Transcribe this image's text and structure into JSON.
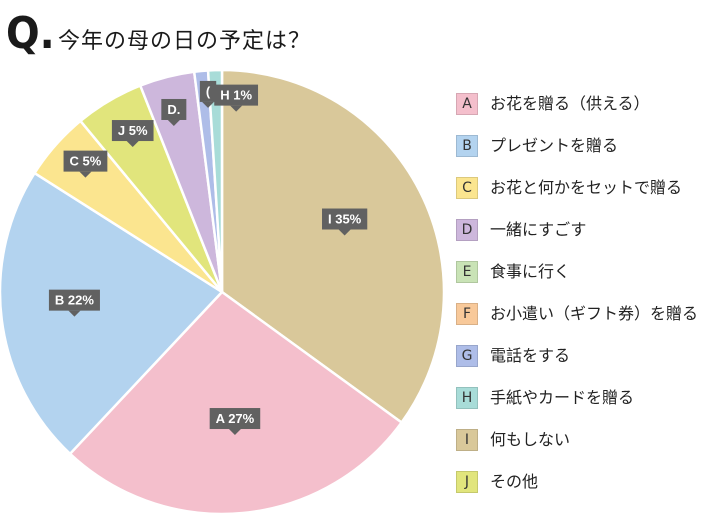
{
  "title": {
    "mark": "Q.",
    "text": "今年の母の日の予定は？"
  },
  "chart_data": {
    "type": "pie",
    "title": "今年の母の日の予定は？",
    "start": "top, clockwise",
    "slices": [
      {
        "key": "I",
        "label": "何もしない",
        "value": 35,
        "color": "#d9c89a"
      },
      {
        "key": "A",
        "label": "お花を贈る（供える）",
        "value": 27,
        "color": "#f4bfcc"
      },
      {
        "key": "B",
        "label": "プレゼントを贈る",
        "value": 22,
        "color": "#b3d3ef"
      },
      {
        "key": "C",
        "label": "お花と何かをセットで贈る",
        "value": 5,
        "color": "#fbe58f"
      },
      {
        "key": "J",
        "label": "その他",
        "value": 5,
        "color": "#e1e57c"
      },
      {
        "key": "D",
        "label": "一緒にすごす",
        "value": 4,
        "color": "#cdb7dc"
      },
      {
        "key": "G",
        "label": "電話をする",
        "value": 1,
        "color": "#aebde8"
      },
      {
        "key": "H",
        "label": "手紙やカードを贈る",
        "value": 1,
        "color": "#a8dcd8"
      }
    ],
    "data_labels": [
      {
        "key": "I",
        "text": "I 35%"
      },
      {
        "key": "A",
        "text": "A 27%"
      },
      {
        "key": "B",
        "text": "B 22%"
      },
      {
        "key": "C",
        "text": "C 5%"
      },
      {
        "key": "J",
        "text": "J 5%"
      },
      {
        "key": "D",
        "text": "D."
      },
      {
        "key": "G",
        "text": "("
      },
      {
        "key": "H",
        "text": "H 1%"
      }
    ],
    "legend": [
      {
        "key": "A",
        "label": "お花を贈る（供える）",
        "color": "#f4bfcc"
      },
      {
        "key": "B",
        "label": "プレゼントを贈る",
        "color": "#b3d3ef"
      },
      {
        "key": "C",
        "label": "お花と何かをセットで贈る",
        "color": "#fbe58f"
      },
      {
        "key": "D",
        "label": "一緒にすごす",
        "color": "#cdb7dc"
      },
      {
        "key": "E",
        "label": "食事に行く",
        "color": "#c9e3b6"
      },
      {
        "key": "F",
        "label": "お小遣い（ギフト券）を贈る",
        "color": "#f8c99a"
      },
      {
        "key": "G",
        "label": "電話をする",
        "color": "#aebde8"
      },
      {
        "key": "H",
        "label": "手紙やカードを贈る",
        "color": "#a8dcd8"
      },
      {
        "key": "I",
        "label": "何もしない",
        "color": "#d9c89a"
      },
      {
        "key": "J",
        "label": "その他",
        "color": "#e1e57c"
      }
    ]
  }
}
